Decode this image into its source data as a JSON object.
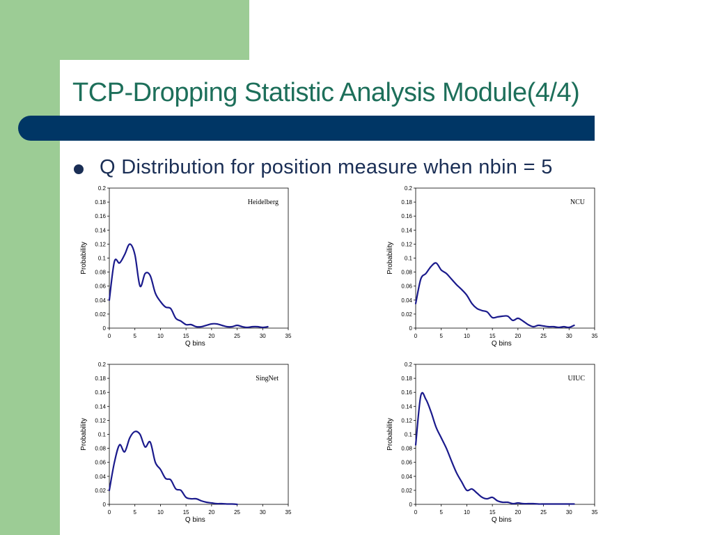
{
  "slide": {
    "title": "TCP-Dropping Statistic Analysis Module(4/4)",
    "bullet": "Q Distribution for position measure when nbin = 5",
    "colors": {
      "side_band": "#9ccc95",
      "title_bar": "#003665",
      "title_text": "#1d6f5a",
      "bullet_text": "#1a2e55",
      "line": "#1a1a8c"
    }
  },
  "chart_data": [
    {
      "type": "line",
      "title": "Heidelberg",
      "xlabel": "Q bins",
      "ylabel": "Probability",
      "xlim": [
        0,
        35
      ],
      "ylim": [
        0,
        0.2
      ],
      "xticks": [
        "0",
        "5",
        "10",
        "15",
        "20",
        "25",
        "30",
        "35"
      ],
      "yticks": [
        "0",
        "0.02",
        "0.04",
        "0.06",
        "0.08",
        "0.1",
        "0.12",
        "0.14",
        "0.16",
        "0.18",
        "0.2"
      ],
      "grid": false,
      "x": [
        0,
        1,
        2,
        3,
        4,
        5,
        6,
        7,
        8,
        9,
        10,
        11,
        12,
        13,
        14,
        15,
        16,
        17,
        18,
        19,
        20,
        21,
        22,
        23,
        24,
        25,
        26,
        27,
        28,
        29,
        30,
        31
      ],
      "y": [
        0.04,
        0.095,
        0.093,
        0.105,
        0.12,
        0.105,
        0.06,
        0.078,
        0.075,
        0.05,
        0.038,
        0.03,
        0.028,
        0.014,
        0.01,
        0.005,
        0.005,
        0.002,
        0.002,
        0.004,
        0.006,
        0.006,
        0.004,
        0.002,
        0.002,
        0.004,
        0.002,
        0.001,
        0.002,
        0.002,
        0.001,
        0.002
      ]
    },
    {
      "type": "line",
      "title": "NCU",
      "xlabel": "Q bins",
      "ylabel": "Probability",
      "xlim": [
        0,
        35
      ],
      "ylim": [
        0,
        0.2
      ],
      "xticks": [
        "0",
        "5",
        "10",
        "15",
        "20",
        "25",
        "30",
        "35"
      ],
      "yticks": [
        "0",
        "0.02",
        "0.04",
        "0.06",
        "0.08",
        "0.1",
        "0.12",
        "0.14",
        "0.16",
        "0.18",
        "0.2"
      ],
      "grid": false,
      "x": [
        0,
        1,
        2,
        3,
        4,
        5,
        6,
        7,
        8,
        9,
        10,
        11,
        12,
        13,
        14,
        15,
        16,
        17,
        18,
        19,
        20,
        21,
        22,
        23,
        24,
        25,
        26,
        27,
        28,
        29,
        30,
        31
      ],
      "y": [
        0.035,
        0.07,
        0.078,
        0.088,
        0.093,
        0.083,
        0.078,
        0.07,
        0.062,
        0.055,
        0.047,
        0.035,
        0.028,
        0.025,
        0.023,
        0.015,
        0.016,
        0.017,
        0.017,
        0.011,
        0.014,
        0.01,
        0.005,
        0.002,
        0.004,
        0.003,
        0.002,
        0.002,
        0.001,
        0.002,
        0.001,
        0.004
      ]
    },
    {
      "type": "line",
      "title": "SingNet",
      "xlabel": "Q bins",
      "ylabel": "Probability",
      "xlim": [
        0,
        35
      ],
      "ylim": [
        0,
        0.2
      ],
      "xticks": [
        "0",
        "5",
        "10",
        "15",
        "20",
        "25",
        "30",
        "35"
      ],
      "yticks": [
        "0",
        "0.02",
        "0.04",
        "0.06",
        "0.08",
        "0.1",
        "0.12",
        "0.14",
        "0.16",
        "0.18",
        "0.2"
      ],
      "grid": false,
      "x": [
        0,
        1,
        2,
        3,
        4,
        5,
        6,
        7,
        8,
        9,
        10,
        11,
        12,
        13,
        14,
        15,
        16,
        17,
        18,
        19,
        20,
        21,
        22,
        23,
        24,
        25
      ],
      "y": [
        0.02,
        0.06,
        0.085,
        0.075,
        0.095,
        0.104,
        0.1,
        0.082,
        0.089,
        0.06,
        0.05,
        0.037,
        0.035,
        0.022,
        0.02,
        0.01,
        0.008,
        0.008,
        0.005,
        0.003,
        0.002,
        0.001,
        0.001,
        0.0005,
        0.0005,
        0
      ]
    },
    {
      "type": "line",
      "title": "UIUC",
      "xlabel": "Q bins",
      "ylabel": "Probability",
      "xlim": [
        0,
        35
      ],
      "ylim": [
        0,
        0.2
      ],
      "xticks": [
        "0",
        "5",
        "10",
        "15",
        "20",
        "25",
        "30",
        "35"
      ],
      "yticks": [
        "0",
        "0.02",
        "0.04",
        "0.06",
        "0.08",
        "0.1",
        "0.12",
        "0.14",
        "0.16",
        "0.18",
        "0.2"
      ],
      "grid": false,
      "x": [
        0,
        1,
        2,
        3,
        4,
        5,
        6,
        7,
        8,
        9,
        10,
        11,
        12,
        13,
        14,
        15,
        16,
        17,
        18,
        19,
        20,
        21,
        22,
        23,
        24,
        25,
        26,
        27,
        28,
        29,
        30,
        31
      ],
      "y": [
        0.085,
        0.155,
        0.15,
        0.132,
        0.11,
        0.095,
        0.08,
        0.062,
        0.045,
        0.032,
        0.02,
        0.022,
        0.016,
        0.01,
        0.008,
        0.01,
        0.005,
        0.003,
        0.003,
        0.001,
        0.002,
        0.001,
        0.001,
        0.001,
        0.0005,
        0.0005,
        0.0005,
        0.0005,
        0.0005,
        0.0005,
        0.0005,
        0.0005
      ]
    }
  ]
}
